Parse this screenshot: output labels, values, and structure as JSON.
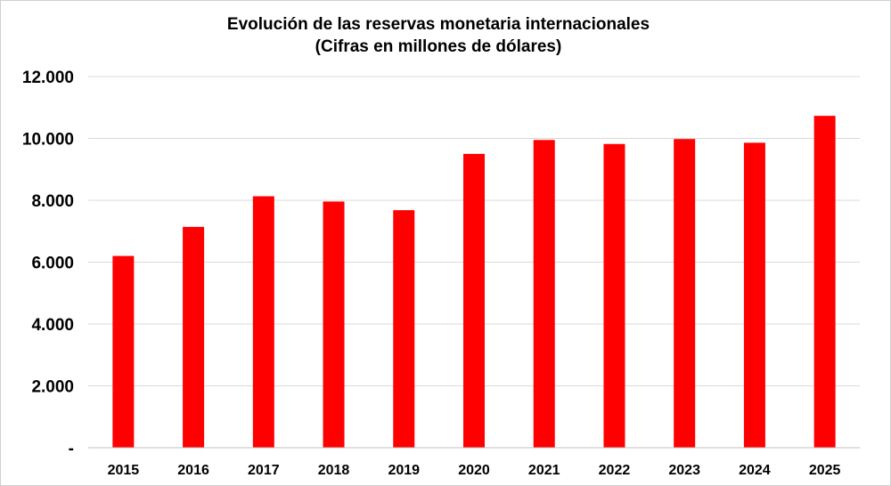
{
  "chart_data": {
    "type": "bar",
    "title": "Evolución de las reservas monetaria internacionales",
    "subtitle": "(Cifras en millones de dólares)",
    "xlabel": "",
    "ylabel": "",
    "categories": [
      "2015",
      "2016",
      "2017",
      "2018",
      "2019",
      "2020",
      "2021",
      "2022",
      "2023",
      "2024",
      "2025"
    ],
    "series": [
      {
        "name": "Reservas monetarias internacionales",
        "values": [
          6200,
          7140,
          8130,
          7960,
          7680,
          9500,
          9950,
          9820,
          9980,
          9860,
          10730
        ],
        "color": "#ff0000"
      }
    ],
    "ylim": [
      0,
      12000
    ],
    "yticks": [
      0,
      2000,
      4000,
      6000,
      8000,
      10000,
      12000
    ],
    "ytick_labels": [
      "-",
      "2.000",
      "4.000",
      "6.000",
      "8.000",
      "10.000",
      "12.000"
    ],
    "grid": true,
    "grid_color": "#d9d9d9",
    "axis_color": "#bfbfbf",
    "legend": "none"
  }
}
